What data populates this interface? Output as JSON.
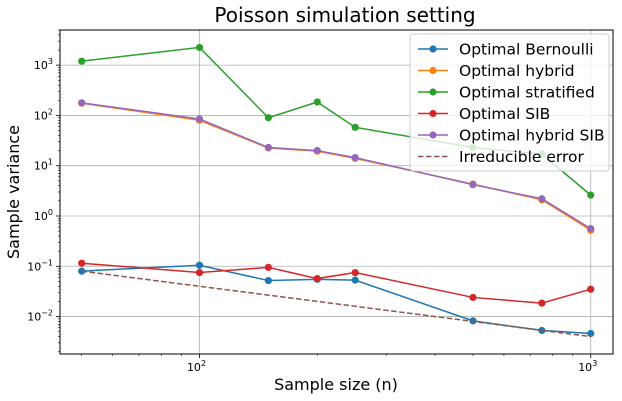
{
  "chart_data": {
    "type": "line",
    "title": "Poisson simulation setting",
    "xlabel": "Sample size (n)",
    "ylabel": "Sample variance",
    "xscale": "log",
    "yscale": "log",
    "xlim": [
      44,
      1140
    ],
    "ylim": [
      0.0018,
      5000
    ],
    "grid": true,
    "legend_position": "top-right",
    "x": [
      50,
      100,
      150,
      200,
      250,
      500,
      750,
      1000
    ],
    "x_ticks": [
      {
        "value": 100,
        "base": "10",
        "exp": "2"
      },
      {
        "value": 1000,
        "base": "10",
        "exp": "3"
      }
    ],
    "y_ticks": [
      {
        "value": 0.01,
        "base": "10",
        "exp": "−2"
      },
      {
        "value": 0.1,
        "base": "10",
        "exp": "−1"
      },
      {
        "value": 1,
        "base": "10",
        "exp": "0"
      },
      {
        "value": 10,
        "base": "10",
        "exp": "1"
      },
      {
        "value": 100,
        "base": "10",
        "exp": "2"
      },
      {
        "value": 1000,
        "base": "10",
        "exp": "3"
      }
    ],
    "series": [
      {
        "name": "Optimal Bernoulli",
        "color": "#1f77b4",
        "style": "solid-marker",
        "values": [
          0.08,
          0.105,
          0.052,
          0.055,
          0.053,
          0.0082,
          0.0053,
          0.0046
        ]
      },
      {
        "name": "Optimal hybrid",
        "color": "#ff7f0e",
        "style": "solid-marker",
        "values": [
          175,
          80,
          22.5,
          19.5,
          14,
          4.3,
          2.1,
          0.52
        ]
      },
      {
        "name": "Optimal stratified",
        "color": "#2ca02c",
        "style": "solid-marker",
        "values": [
          1200,
          2250,
          90,
          185,
          58,
          23,
          17,
          2.6
        ]
      },
      {
        "name": "Optimal SIB",
        "color": "#d62728",
        "style": "solid-marker",
        "values": [
          0.115,
          0.075,
          0.095,
          0.057,
          0.075,
          0.024,
          0.0185,
          0.035
        ]
      },
      {
        "name": "Optimal hybrid SIB",
        "color": "#9467bd",
        "style": "solid-marker",
        "values": [
          178,
          85,
          23,
          20,
          14.5,
          4.2,
          2.2,
          0.56
        ]
      },
      {
        "name": "Irreducible error",
        "color": "#8c564b",
        "style": "dashed",
        "values": [
          0.08,
          0.04,
          0.0267,
          0.02,
          0.016,
          0.008,
          0.0053,
          0.004
        ]
      }
    ]
  }
}
